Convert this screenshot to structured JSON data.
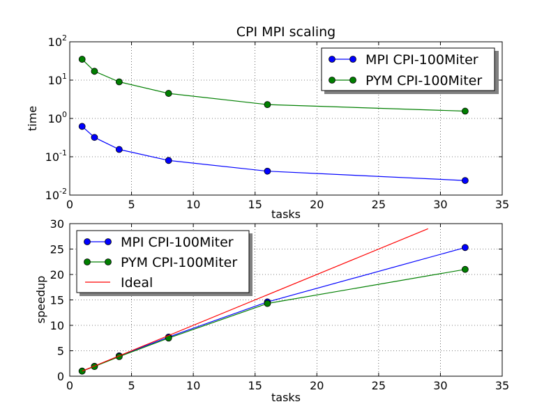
{
  "chart_data": [
    {
      "type": "line",
      "title": "CPI MPI scaling",
      "xlabel": "tasks",
      "ylabel": "time",
      "yscale": "log",
      "xlim": [
        0,
        35
      ],
      "ylim": [
        0.01,
        100
      ],
      "xticks": [
        "0",
        "5",
        "10",
        "15",
        "20",
        "25",
        "30",
        "35"
      ],
      "yticks": [
        {
          "base": "10",
          "exp": "-2"
        },
        {
          "base": "10",
          "exp": "-1"
        },
        {
          "base": "10",
          "exp": "0"
        },
        {
          "base": "10",
          "exp": "1"
        },
        {
          "base": "10",
          "exp": "2"
        }
      ],
      "grid": true,
      "legend_position": "top-right",
      "series": [
        {
          "name": "MPI CPI-100Miter",
          "color": "#0000ff",
          "marker": "circle",
          "x": [
            1,
            2,
            4,
            8,
            16,
            32
          ],
          "y": [
            0.62,
            0.32,
            0.155,
            0.08,
            0.042,
            0.024
          ]
        },
        {
          "name": "PYM CPI-100Miter",
          "color": "#007f00",
          "marker": "circle",
          "x": [
            1,
            2,
            4,
            8,
            16,
            32
          ],
          "y": [
            35,
            17,
            9,
            4.5,
            2.3,
            1.55
          ]
        }
      ]
    },
    {
      "type": "line",
      "title": "",
      "xlabel": "tasks",
      "ylabel": "speedup",
      "xlim": [
        0,
        35
      ],
      "ylim": [
        0,
        30
      ],
      "xticks": [
        "0",
        "5",
        "10",
        "15",
        "20",
        "25",
        "30",
        "35"
      ],
      "yticks": [
        "0",
        "5",
        "10",
        "15",
        "20",
        "25",
        "30"
      ],
      "grid": true,
      "legend_position": "top-left",
      "series": [
        {
          "name": "MPI CPI-100Miter",
          "color": "#0000ff",
          "marker": "circle",
          "x": [
            1,
            2,
            4,
            8,
            16,
            32
          ],
          "y": [
            1,
            1.95,
            4,
            7.7,
            14.6,
            25.3
          ]
        },
        {
          "name": "PYM CPI-100Miter",
          "color": "#007f00",
          "marker": "circle",
          "x": [
            1,
            2,
            4,
            8,
            16,
            32
          ],
          "y": [
            1,
            1.9,
            3.85,
            7.5,
            14.3,
            21
          ]
        },
        {
          "name": "Ideal",
          "color": "#ff0000",
          "marker": "none",
          "x": [
            1,
            29
          ],
          "y": [
            1,
            29
          ]
        }
      ]
    }
  ]
}
